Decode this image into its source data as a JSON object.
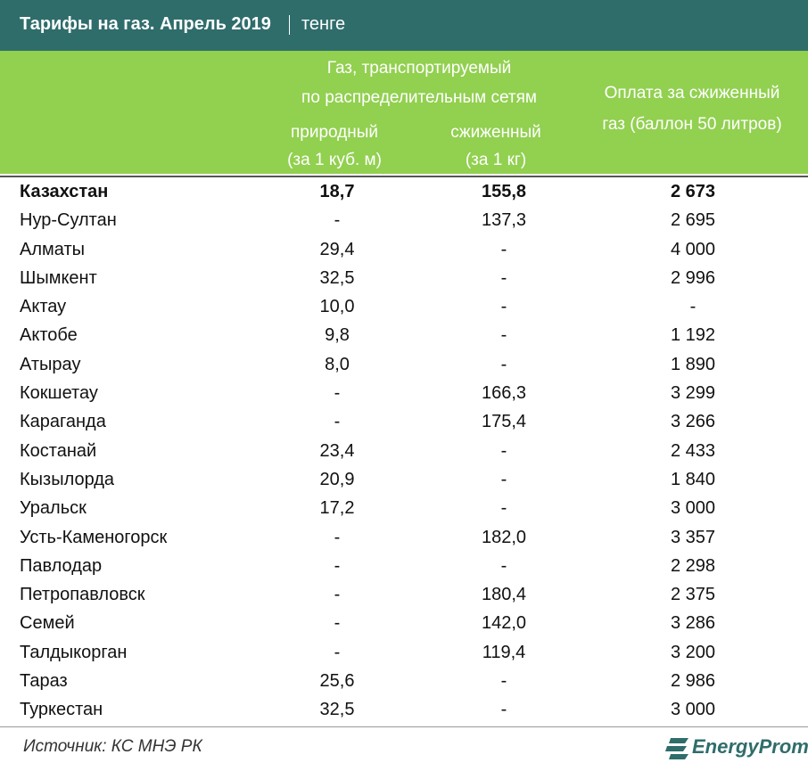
{
  "header": {
    "title": "Тарифы на газ. Апрель 2019",
    "unit": "тенге"
  },
  "table": {
    "group_header": [
      "Газ, транспортируемый",
      "по распределительным сетям"
    ],
    "columns": [
      [
        "природный",
        "(за 1 куб. м)"
      ],
      [
        "сжиженный",
        "(за 1 кг)"
      ],
      [
        "Оплата за сжиженный",
        "газ (баллон 50 литров)"
      ]
    ],
    "rows": [
      [
        "Казахстан",
        "18,7",
        "155,8",
        "2 673"
      ],
      [
        "Нур-Султан",
        "-",
        "137,3",
        "2 695"
      ],
      [
        "Алматы",
        "29,4",
        "-",
        "4 000"
      ],
      [
        "Шымкент",
        "32,5",
        "-",
        "2 996"
      ],
      [
        "Актау",
        "10,0",
        "-",
        "-"
      ],
      [
        "Актобе",
        "9,8",
        "-",
        "1 192"
      ],
      [
        "Атырау",
        "8,0",
        "-",
        "1 890"
      ],
      [
        "Кокшетау",
        "-",
        "166,3",
        "3 299"
      ],
      [
        "Караганда",
        "-",
        "175,4",
        "3 266"
      ],
      [
        "Костанай",
        "23,4",
        "-",
        "2 433"
      ],
      [
        "Кызылорда",
        "20,9",
        "-",
        "1 840"
      ],
      [
        "Уральск",
        "17,2",
        "-",
        "3 000"
      ],
      [
        "Усть-Каменогорск",
        "-",
        "182,0",
        "3 357"
      ],
      [
        "Павлодар",
        "-",
        "-",
        "2 298"
      ],
      [
        "Петропавловск",
        "-",
        "180,4",
        "2 375"
      ],
      [
        "Семей",
        "-",
        "142,0",
        "3 286"
      ],
      [
        "Талдыкорган",
        "-",
        "119,4",
        "3 200"
      ],
      [
        "Тараз",
        "25,6",
        "-",
        "2 986"
      ],
      [
        "Туркестан",
        "32,5",
        "-",
        "3 000"
      ]
    ]
  },
  "footer": {
    "source": "Источник: КС МНЭ РК",
    "logo": "EnergyProm"
  }
}
